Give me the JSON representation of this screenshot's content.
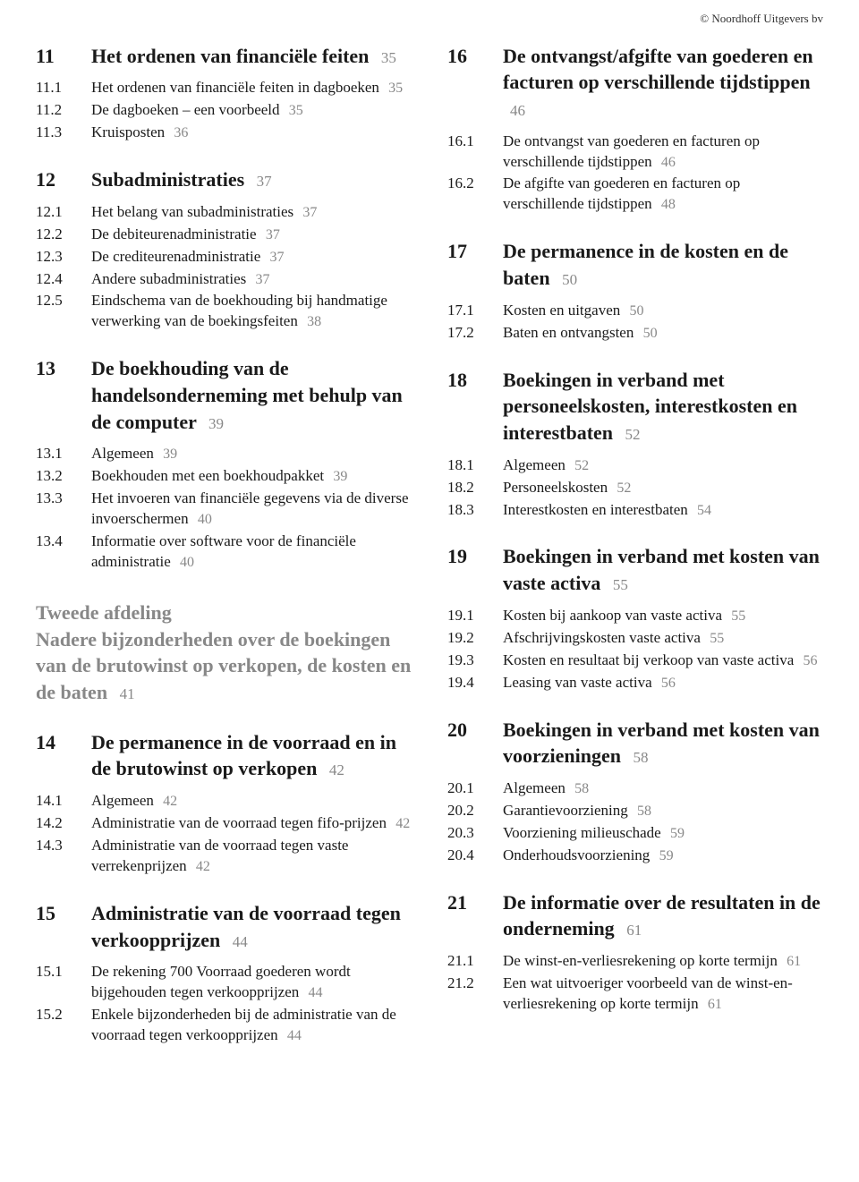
{
  "copyright": "© Noordhoff Uitgevers bv",
  "left": [
    {
      "type": "chapter",
      "num": "11",
      "title": "Het ordenen van financiële feiten",
      "page": "35",
      "first": true
    },
    {
      "type": "sub",
      "num": "11.1",
      "text": "Het ordenen van financiële feiten in dagboeken",
      "page": "35"
    },
    {
      "type": "sub",
      "num": "11.2",
      "text": "De dagboeken – een voorbeeld",
      "page": "35"
    },
    {
      "type": "sub",
      "num": "11.3",
      "text": "Kruisposten",
      "page": "36"
    },
    {
      "type": "chapter",
      "num": "12",
      "title": "Subadministraties",
      "page": "37"
    },
    {
      "type": "sub",
      "num": "12.1",
      "text": "Het belang van subadministraties",
      "page": "37"
    },
    {
      "type": "sub",
      "num": "12.2",
      "text": "De debiteurenadministratie",
      "page": "37"
    },
    {
      "type": "sub",
      "num": "12.3",
      "text": "De crediteurenadministratie",
      "page": "37"
    },
    {
      "type": "sub",
      "num": "12.4",
      "text": "Andere subadministraties",
      "page": "37"
    },
    {
      "type": "sub",
      "num": "12.5",
      "text": "Eindschema van de boekhouding bij handmatige verwerking van de boekingsfeiten",
      "page": "38"
    },
    {
      "type": "chapter",
      "num": "13",
      "title": "De boekhouding van de handelsonderneming met behulp van de computer",
      "page": "39"
    },
    {
      "type": "sub",
      "num": "13.1",
      "text": "Algemeen",
      "page": "39"
    },
    {
      "type": "sub",
      "num": "13.2",
      "text": "Boekhouden met een boekhoudpakket",
      "page": "39"
    },
    {
      "type": "sub",
      "num": "13.3",
      "text": "Het invoeren van financiële gegevens via de diverse invoerschermen",
      "page": "40"
    },
    {
      "type": "sub",
      "num": "13.4",
      "text": "Informatie over software voor de financiële administratie",
      "page": "40"
    },
    {
      "type": "division",
      "title": "Tweede afdeling\nNadere bijzonderheden over de boekingen van de brutowinst op verkopen, de kosten en de baten",
      "page": "41"
    },
    {
      "type": "chapter",
      "num": "14",
      "title": "De permanence in de voorraad en in de brutowinst op verkopen",
      "page": "42"
    },
    {
      "type": "sub",
      "num": "14.1",
      "text": "Algemeen",
      "page": "42"
    },
    {
      "type": "sub",
      "num": "14.2",
      "text": "Administratie van de voorraad tegen fifo-prijzen",
      "page": "42"
    },
    {
      "type": "sub",
      "num": "14.3",
      "text": "Administratie van de voorraad tegen vaste verrekenprijzen",
      "page": "42"
    },
    {
      "type": "chapter",
      "num": "15",
      "title": "Administratie van de voorraad tegen verkoopprijzen",
      "page": "44"
    },
    {
      "type": "sub",
      "num": "15.1",
      "text": "De rekening 700 Voorraad goederen wordt bijgehouden tegen verkoopprijzen",
      "page": "44"
    },
    {
      "type": "sub",
      "num": "15.2",
      "text": "Enkele bijzonderheden bij de administratie van de voorraad tegen verkoopprijzen",
      "page": "44"
    }
  ],
  "right": [
    {
      "type": "chapter",
      "num": "16",
      "title": "De ontvangst/afgifte van goederen en facturen op verschillende tijdstippen",
      "page": "46",
      "first": true
    },
    {
      "type": "sub",
      "num": "16.1",
      "text": "De ontvangst van goederen en facturen op verschillende tijdstippen",
      "page": "46"
    },
    {
      "type": "sub",
      "num": "16.2",
      "text": "De afgifte van goederen en facturen op verschillende tijdstippen",
      "page": "48"
    },
    {
      "type": "chapter",
      "num": "17",
      "title": "De permanence in de kosten en de baten",
      "page": "50"
    },
    {
      "type": "sub",
      "num": "17.1",
      "text": "Kosten en uitgaven",
      "page": "50"
    },
    {
      "type": "sub",
      "num": "17.2",
      "text": "Baten en ontvangsten",
      "page": "50"
    },
    {
      "type": "chapter",
      "num": "18",
      "title": "Boekingen in verband met personeelskosten, interestkosten en interestbaten",
      "page": "52"
    },
    {
      "type": "sub",
      "num": "18.1",
      "text": "Algemeen",
      "page": "52"
    },
    {
      "type": "sub",
      "num": "18.2",
      "text": "Personeelskosten",
      "page": "52"
    },
    {
      "type": "sub",
      "num": "18.3",
      "text": "Interestkosten en interestbaten",
      "page": "54"
    },
    {
      "type": "chapter",
      "num": "19",
      "title": "Boekingen in verband met kosten van vaste activa",
      "page": "55"
    },
    {
      "type": "sub",
      "num": "19.1",
      "text": "Kosten bij aankoop van vaste activa",
      "page": "55"
    },
    {
      "type": "sub",
      "num": "19.2",
      "text": "Afschrijvingskosten vaste activa",
      "page": "55"
    },
    {
      "type": "sub",
      "num": "19.3",
      "text": "Kosten en resultaat bij verkoop van vaste activa",
      "page": "56"
    },
    {
      "type": "sub",
      "num": "19.4",
      "text": "Leasing van vaste activa",
      "page": "56"
    },
    {
      "type": "chapter",
      "num": "20",
      "title": "Boekingen in verband met kosten van voorzieningen",
      "page": "58"
    },
    {
      "type": "sub",
      "num": "20.1",
      "text": "Algemeen",
      "page": "58"
    },
    {
      "type": "sub",
      "num": "20.2",
      "text": "Garantievoorziening",
      "page": "58"
    },
    {
      "type": "sub",
      "num": "20.3",
      "text": "Voorziening milieuschade",
      "page": "59"
    },
    {
      "type": "sub",
      "num": "20.4",
      "text": "Onderhoudsvoorziening",
      "page": "59"
    },
    {
      "type": "chapter",
      "num": "21",
      "title": "De informatie over de resultaten in de onderneming",
      "page": "61"
    },
    {
      "type": "sub",
      "num": "21.1",
      "text": "De winst-en-verliesrekening op korte termijn",
      "page": "61"
    },
    {
      "type": "sub",
      "num": "21.2",
      "text": "Een wat uitvoeriger voorbeeld van de winst-en-verliesrekening op korte termijn",
      "page": "61"
    }
  ]
}
